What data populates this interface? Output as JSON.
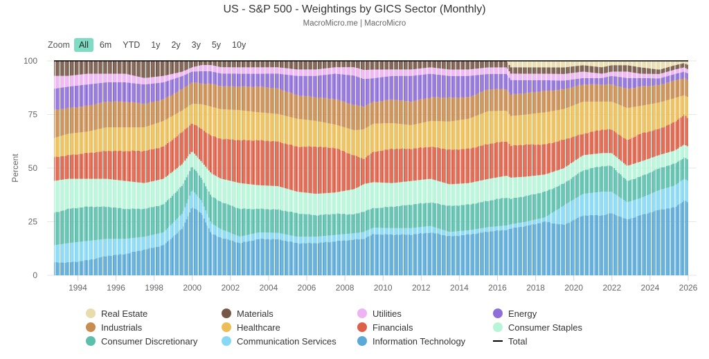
{
  "header": {
    "title": "US - S&P 500 - Weightings by GICS Sector (Monthly)",
    "subtitle": "MacroMicro.me | MacroMicro"
  },
  "zoom": {
    "label": "Zoom",
    "buttons": [
      "All",
      "6m",
      "YTD",
      "1y",
      "2y",
      "3y",
      "5y",
      "10y"
    ],
    "active": "All"
  },
  "chart_data": {
    "type": "bar",
    "stacked": true,
    "title": "US - S&P 500 - Weightings by GICS Sector (Monthly)",
    "subtitle": "MacroMicro.me | MacroMicro",
    "xlabel": "",
    "ylabel": "Percent",
    "ylim": [
      0,
      100
    ],
    "yticks": [
      "0",
      "25",
      "50",
      "75",
      "100"
    ],
    "xlim": [
      1992.75,
      2026.0
    ],
    "xticks": [
      "1994",
      "1996",
      "1998",
      "2000",
      "2002",
      "2004",
      "2006",
      "2008",
      "2010",
      "2012",
      "2014",
      "2016",
      "2018",
      "2020",
      "2022",
      "2024",
      "2026"
    ],
    "grid": true,
    "legend_position": "bottom",
    "x": [
      1992.75,
      1993.5,
      1994.5,
      1995.5,
      1996.5,
      1997.5,
      1998.5,
      1999.5,
      2000.0,
      2000.5,
      2001.0,
      2001.5,
      2002.5,
      2003.5,
      2004.5,
      2005.5,
      2006.5,
      2007.5,
      2008.5,
      2009.0,
      2009.5,
      2010.5,
      2011.5,
      2012.5,
      2013.5,
      2014.5,
      2015.5,
      2016.5,
      2016.7,
      2017.5,
      2018.5,
      2019.5,
      2020.5,
      2021.5,
      2022.0,
      2022.8,
      2023.5,
      2024.5,
      2025.3,
      2025.8,
      2026.0
    ],
    "series": [
      {
        "name": "Information Technology",
        "color": "#5aa9d6",
        "values": [
          6,
          6,
          7,
          9,
          10,
          12,
          14,
          22,
          32,
          30,
          20,
          18,
          15,
          17,
          17,
          15,
          15,
          16,
          17,
          16,
          19,
          19,
          19,
          20,
          18,
          19,
          20,
          21,
          22,
          23,
          25,
          23,
          28,
          28,
          29,
          26,
          28,
          30,
          31,
          35,
          34
        ]
      },
      {
        "name": "Communication Services",
        "color": "#86d8f5",
        "values": [
          8,
          9,
          9,
          8,
          7,
          6,
          6,
          7,
          8,
          6,
          5,
          4,
          3,
          3,
          3,
          3,
          3,
          3,
          3,
          3,
          3,
          3,
          3,
          3,
          2,
          2,
          2,
          2,
          2,
          2,
          2,
          9,
          10,
          11,
          10,
          8,
          8,
          9,
          10,
          10,
          10
        ]
      },
      {
        "name": "Consumer Discretionary",
        "color": "#5bbfac",
        "values": [
          15,
          16,
          16,
          15,
          14,
          13,
          13,
          13,
          11,
          11,
          13,
          13,
          13,
          11,
          11,
          11,
          10,
          10,
          9,
          9,
          9,
          10,
          11,
          11,
          12,
          12,
          12,
          13,
          12,
          12,
          12,
          10,
          11,
          12,
          12,
          10,
          10,
          10,
          10,
          10,
          10
        ]
      },
      {
        "name": "Consumer Staples",
        "color": "#b6f5d8",
        "values": [
          15,
          14,
          13,
          13,
          13,
          12,
          12,
          10,
          7,
          8,
          11,
          11,
          12,
          11,
          11,
          10,
          10,
          10,
          12,
          12,
          12,
          11,
          11,
          11,
          10,
          10,
          10,
          10,
          10,
          9,
          8,
          7,
          7,
          6,
          6,
          7,
          7,
          6,
          6,
          6,
          6
        ]
      },
      {
        "name": "Financials",
        "color": "#dd6149",
        "values": [
          11,
          11,
          12,
          13,
          14,
          15,
          15,
          15,
          13,
          16,
          18,
          19,
          20,
          21,
          21,
          21,
          22,
          21,
          16,
          11,
          14,
          16,
          15,
          15,
          16,
          16,
          16,
          16,
          15,
          15,
          14,
          13,
          10,
          11,
          11,
          12,
          13,
          12,
          13,
          14,
          13
        ]
      },
      {
        "name": "Healthcare",
        "color": "#ebbe58",
        "values": [
          9,
          10,
          10,
          11,
          11,
          11,
          12,
          10,
          9,
          12,
          14,
          14,
          14,
          13,
          13,
          13,
          12,
          11,
          12,
          13,
          13,
          12,
          11,
          12,
          13,
          14,
          15,
          14,
          14,
          14,
          15,
          14,
          15,
          13,
          13,
          15,
          13,
          12,
          11,
          9,
          10
        ]
      },
      {
        "name": "Industrials",
        "color": "#c98c50",
        "values": [
          13,
          12,
          12,
          12,
          12,
          11,
          10,
          10,
          10,
          10,
          11,
          11,
          11,
          12,
          12,
          11,
          11,
          12,
          12,
          10,
          10,
          11,
          11,
          11,
          11,
          10,
          10,
          10,
          10,
          10,
          10,
          9,
          8,
          8,
          8,
          9,
          9,
          8,
          8,
          8,
          8
        ]
      },
      {
        "name": "Energy",
        "color": "#8e6fd7",
        "values": [
          10,
          10,
          10,
          9,
          9,
          9,
          8,
          6,
          5,
          6,
          6,
          6,
          6,
          6,
          7,
          9,
          10,
          12,
          14,
          12,
          11,
          11,
          12,
          11,
          10,
          10,
          7,
          7,
          7,
          6,
          5,
          4,
          3,
          3,
          4,
          5,
          4,
          3,
          3,
          3,
          3
        ]
      },
      {
        "name": "Utilities",
        "color": "#edb3f2",
        "values": [
          6,
          5,
          5,
          4,
          4,
          3,
          3,
          2,
          2,
          3,
          3,
          3,
          3,
          3,
          3,
          3,
          3,
          3,
          4,
          4,
          4,
          3,
          3,
          3,
          3,
          3,
          3,
          3,
          3,
          3,
          3,
          3,
          3,
          2,
          2,
          3,
          2,
          2,
          2,
          2,
          2
        ]
      },
      {
        "name": "Materials",
        "color": "#765848",
        "values": [
          7,
          7,
          6,
          6,
          6,
          8,
          7,
          5,
          3,
          2,
          2,
          3,
          3,
          3,
          3,
          4,
          4,
          3,
          3,
          4,
          4,
          4,
          4,
          3,
          4,
          4,
          3,
          3,
          3,
          3,
          3,
          3,
          3,
          3,
          3,
          3,
          3,
          2,
          2,
          2,
          2
        ]
      },
      {
        "name": "Real Estate",
        "color": "#e9dcac",
        "values": [
          0,
          0,
          0,
          0,
          0,
          0,
          0,
          0,
          0,
          0,
          0,
          0,
          0,
          0,
          0,
          0,
          0,
          0,
          0,
          0,
          0,
          0,
          0,
          0,
          0,
          0,
          0,
          0,
          3,
          3,
          3,
          3,
          2,
          3,
          2,
          2,
          3,
          4,
          2,
          1,
          2
        ]
      },
      {
        "name": "Total",
        "color": "#000000",
        "type": "line",
        "values": [
          100,
          100,
          100,
          100,
          100,
          100,
          100,
          100,
          100,
          100,
          100,
          100,
          100,
          100,
          100,
          100,
          100,
          100,
          100,
          100,
          100,
          100,
          100,
          100,
          100,
          100,
          100,
          100,
          100,
          100,
          100,
          100,
          100,
          100,
          100,
          100,
          100,
          100,
          100,
          100,
          100
        ]
      }
    ]
  },
  "legend": {
    "items": [
      {
        "label": "Real Estate",
        "color": "#e9dcac"
      },
      {
        "label": "Materials",
        "color": "#765848"
      },
      {
        "label": "Utilities",
        "color": "#edb3f2"
      },
      {
        "label": "Energy",
        "color": "#8e6fd7"
      },
      {
        "label": "Industrials",
        "color": "#c98c50"
      },
      {
        "label": "Healthcare",
        "color": "#ebbe58"
      },
      {
        "label": "Financials",
        "color": "#dd6149"
      },
      {
        "label": "Consumer Staples",
        "color": "#b6f5d8"
      },
      {
        "label": "Consumer Discretionary",
        "color": "#5bbfac"
      },
      {
        "label": "Communication Services",
        "color": "#86d8f5"
      },
      {
        "label": "Information Technology",
        "color": "#5aa9d6"
      },
      {
        "label": "Total",
        "color": "#000000",
        "line": true
      }
    ]
  }
}
